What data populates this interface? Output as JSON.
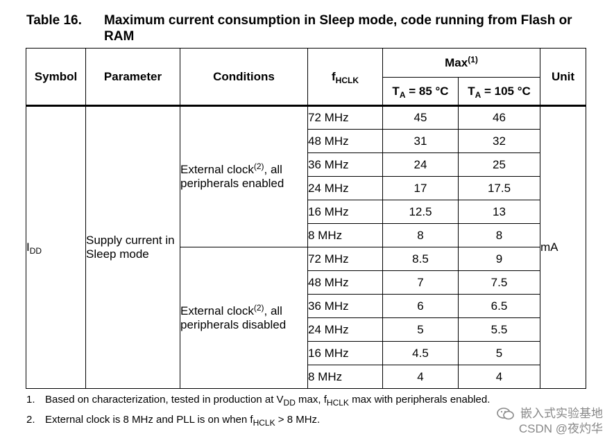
{
  "title": {
    "number": "Table 16.",
    "text": "Maximum current consumption in Sleep mode, code running from Flash or RAM"
  },
  "header": {
    "symbol": "Symbol",
    "parameter": "Parameter",
    "conditions": "Conditions",
    "fhclk_main": "f",
    "fhclk_sub": "HCLK",
    "max_main": "Max",
    "max_sup": "(1)",
    "ta_main": "T",
    "ta_sub": "A",
    "ta85_tail": " = 85 °C",
    "ta105_tail": " = 105 °C",
    "unit": "Unit"
  },
  "symbol": {
    "main": "I",
    "sub": "DD"
  },
  "parameter": "Supply current in Sleep mode",
  "unit": "mA",
  "groups": [
    {
      "cond_prefix": "External clock",
      "cond_sup": "(2)",
      "cond_suffix": ", all peripherals enabled",
      "rows": [
        {
          "freq": "72 MHz",
          "t85": "45",
          "t105": "46"
        },
        {
          "freq": "48 MHz",
          "t85": "31",
          "t105": "32"
        },
        {
          "freq": "36 MHz",
          "t85": "24",
          "t105": "25"
        },
        {
          "freq": "24 MHz",
          "t85": "17",
          "t105": "17.5"
        },
        {
          "freq": "16 MHz",
          "t85": "12.5",
          "t105": "13"
        },
        {
          "freq": "8 MHz",
          "t85": "8",
          "t105": "8"
        }
      ]
    },
    {
      "cond_prefix": "External clock",
      "cond_sup": "(2)",
      "cond_suffix": ", all peripherals disabled",
      "rows": [
        {
          "freq": "72 MHz",
          "t85": "8.5",
          "t105": "9"
        },
        {
          "freq": "48 MHz",
          "t85": "7",
          "t105": "7.5"
        },
        {
          "freq": "36 MHz",
          "t85": "6",
          "t105": "6.5"
        },
        {
          "freq": "24 MHz",
          "t85": "5",
          "t105": "5.5"
        },
        {
          "freq": "16 MHz",
          "t85": "4.5",
          "t105": "5"
        },
        {
          "freq": "8 MHz",
          "t85": "4",
          "t105": "4"
        }
      ]
    }
  ],
  "notes": [
    {
      "num": "1.",
      "p1": "Based on characterization, tested in production at V",
      "s1": "DD",
      "p2": " max, f",
      "s2": "HCLK",
      "p3": " max with peripherals enabled."
    },
    {
      "num": "2.",
      "p1": "External clock is 8 MHz and PLL is on when f",
      "s1": "HCLK",
      "p2": " > 8 MHz."
    }
  ],
  "watermark": {
    "line1": "嵌入式实验基地",
    "line2": "CSDN @夜灼华"
  },
  "colors": {
    "text": "#000000",
    "border": "#000000",
    "watermark": "#888888"
  }
}
